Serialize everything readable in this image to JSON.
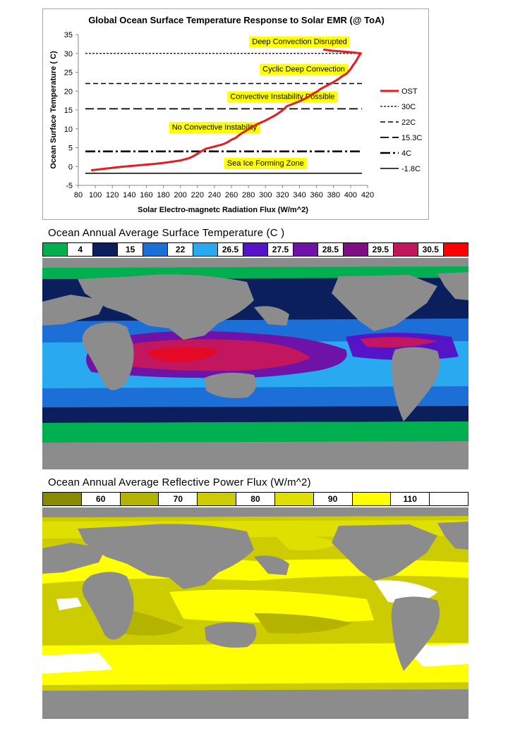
{
  "colors": {
    "ost_line": "#e81c1c",
    "land": "#8c8c8c",
    "annotation_bg": "#ffff00"
  },
  "chart_data": {
    "type": "line",
    "title": "Global Ocean Surface Temperature Response to Solar EMR (@ ToA)",
    "xlabel": "Solar Electro-magnetc Radiation Flux (W/m^2)",
    "ylabel": "Ocean Surface Temperature ( C)",
    "xlim": [
      80,
      420
    ],
    "ylim": [
      -5,
      35
    ],
    "xticks": [
      80,
      100,
      120,
      140,
      160,
      180,
      200,
      220,
      240,
      260,
      280,
      300,
      320,
      340,
      360,
      380,
      400,
      420
    ],
    "yticks": [
      -5,
      0,
      5,
      10,
      15,
      20,
      25,
      30,
      35
    ],
    "grid": false,
    "legend_position": "right",
    "series": [
      {
        "name": "OST",
        "x": [
          95,
          110,
          130,
          150,
          170,
          185,
          200,
          210,
          215,
          220,
          225,
          230,
          240,
          250,
          255,
          260,
          265,
          270,
          275,
          280,
          285,
          290,
          300,
          310,
          315,
          320,
          325,
          330,
          340,
          350,
          355,
          360,
          365,
          370,
          375,
          380,
          385,
          390,
          395,
          400,
          403,
          406,
          408,
          410,
          412,
          405,
          395,
          385,
          378,
          372,
          368
        ],
        "y": [
          -1,
          -0.6,
          -0.1,
          0.3,
          0.7,
          1.1,
          1.6,
          2.2,
          2.7,
          3.4,
          4.1,
          4.7,
          5.3,
          5.9,
          6.4,
          7.1,
          7.6,
          8.5,
          9.2,
          9.9,
          10.6,
          11.2,
          12.2,
          13.4,
          14.1,
          14.9,
          16.0,
          16.4,
          17.3,
          18.4,
          19.2,
          19.8,
          20.6,
          21.2,
          21.8,
          22.4,
          23.1,
          23.9,
          24.6,
          25.8,
          26.9,
          27.8,
          28.6,
          29.4,
          30.0,
          30.2,
          30.4,
          30.6,
          30.7,
          30.9,
          31.0
        ]
      }
    ],
    "reference_lines": [
      {
        "name": "30C",
        "y": 30,
        "style": "dotted"
      },
      {
        "name": "22C",
        "y": 22,
        "style": "dashed"
      },
      {
        "name": "15.3C",
        "y": 15.3,
        "style": "longdash"
      },
      {
        "name": "4C",
        "y": 4,
        "style": "dashdot"
      },
      {
        "name": "-1.8C",
        "y": -1.8,
        "style": "solid"
      }
    ],
    "annotations": [
      {
        "text": "Deep Convection Disrupted",
        "x": 340,
        "y": 33.2
      },
      {
        "text": "Cyclic Deep Convection",
        "x": 345,
        "y": 25.9
      },
      {
        "text": "Convective Instability Possible",
        "x": 320,
        "y": 18.6
      },
      {
        "text": "No Convective Instability",
        "x": 240,
        "y": 10.5
      },
      {
        "text": "Sea Ice Forming Zone",
        "x": 300,
        "y": 1.0
      }
    ]
  },
  "temp_map": {
    "title": "Ocean Annual Average Surface Temperature (C )",
    "legend": [
      {
        "color": "#00b050",
        "label": ""
      },
      {
        "color": "#ffffff",
        "label": "4"
      },
      {
        "color": "#0a1f5c",
        "label": ""
      },
      {
        "color": "#ffffff",
        "label": "15"
      },
      {
        "color": "#1c6fd6",
        "label": ""
      },
      {
        "color": "#ffffff",
        "label": "22"
      },
      {
        "color": "#29aaf0",
        "label": ""
      },
      {
        "color": "#ffffff",
        "label": "26.5"
      },
      {
        "color": "#5514c8",
        "label": ""
      },
      {
        "color": "#ffffff",
        "label": "27.5"
      },
      {
        "color": "#6e12a8",
        "label": ""
      },
      {
        "color": "#ffffff",
        "label": "28.5"
      },
      {
        "color": "#7e0f82",
        "label": ""
      },
      {
        "color": "#ffffff",
        "label": "29.5"
      },
      {
        "color": "#c2165e",
        "label": ""
      },
      {
        "color": "#ffffff",
        "label": "30.5"
      },
      {
        "color": "#ff0000",
        "label": ""
      }
    ]
  },
  "flux_map": {
    "title": "Ocean Annual Average Reflective Power Flux (W/m^2)",
    "legend": [
      {
        "color": "#8a8a00",
        "label": ""
      },
      {
        "color": "#ffffff",
        "label": "60"
      },
      {
        "color": "#b3b300",
        "label": ""
      },
      {
        "color": "#ffffff",
        "label": "70"
      },
      {
        "color": "#cccc00",
        "label": ""
      },
      {
        "color": "#ffffff",
        "label": "80"
      },
      {
        "color": "#e0e000",
        "label": ""
      },
      {
        "color": "#ffffff",
        "label": "90"
      },
      {
        "color": "#ffff00",
        "label": ""
      },
      {
        "color": "#ffffff",
        "label": "110"
      },
      {
        "color": "#ffffff",
        "label": ""
      }
    ]
  }
}
